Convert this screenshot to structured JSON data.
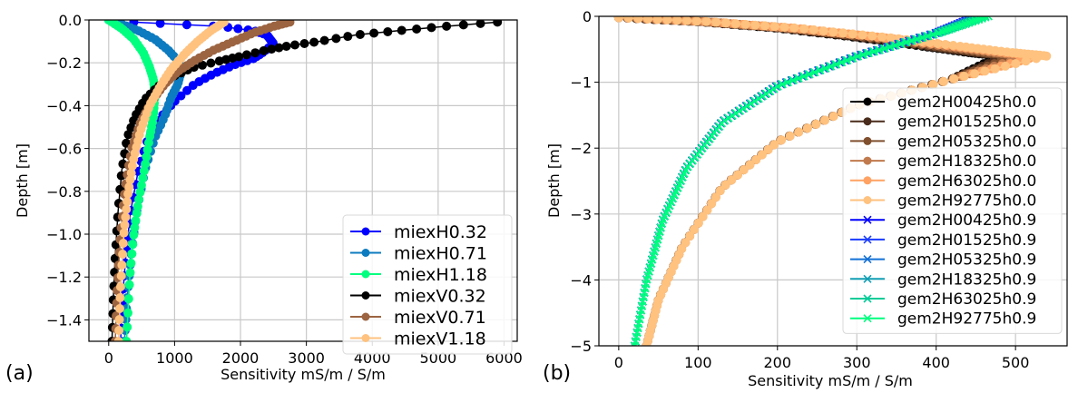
{
  "chart_data": [
    {
      "type": "scatter",
      "panel_label": "(a)",
      "xlabel": "Sensitivity mS/m / S/m",
      "ylabel": "Depth [m]",
      "xlim": [
        -300,
        6200
      ],
      "ylim": [
        -1.5,
        0.0
      ],
      "xticks": [
        0,
        1000,
        2000,
        3000,
        4000,
        5000,
        6000
      ],
      "xtick_labels": [
        "0",
        "1000",
        "2000",
        "3000",
        "4000",
        "5000",
        "6000"
      ],
      "yticks": [
        0.0,
        -0.2,
        -0.4,
        -0.6,
        -0.8,
        -1.0,
        -1.2,
        -1.4
      ],
      "ytick_labels": [
        "0.0",
        "−0.2",
        "−0.4",
        "−0.6",
        "−0.8",
        "−1.0",
        "−1.2",
        "−1.4"
      ],
      "grid": true,
      "legend_position": "lower-right",
      "series": [
        {
          "name": "miexH0.32",
          "color": "#0000ff",
          "marker": "circle",
          "points": [
            [
              380,
              -0.01
            ],
            [
              1700,
              -0.03
            ],
            [
              2200,
              -0.05
            ],
            [
              2400,
              -0.07
            ],
            [
              2450,
              -0.09
            ],
            [
              2500,
              -0.11
            ],
            [
              2350,
              -0.15
            ],
            [
              2200,
              -0.18
            ],
            [
              1900,
              -0.21
            ],
            [
              1600,
              -0.25
            ],
            [
              1300,
              -0.3
            ],
            [
              1000,
              -0.38
            ],
            [
              800,
              -0.45
            ],
            [
              600,
              -0.55
            ],
            [
              450,
              -0.7
            ],
            [
              330,
              -0.9
            ],
            [
              260,
              -1.1
            ],
            [
              210,
              -1.3
            ],
            [
              180,
              -1.5
            ]
          ]
        },
        {
          "name": "miexH0.71",
          "color": "#0c7bbf",
          "marker": "circle",
          "points": [
            [
              0,
              -0.0
            ],
            [
              200,
              -0.02
            ],
            [
              450,
              -0.05
            ],
            [
              700,
              -0.09
            ],
            [
              900,
              -0.14
            ],
            [
              1050,
              -0.19
            ],
            [
              1100,
              -0.24
            ],
            [
              1050,
              -0.3
            ],
            [
              950,
              -0.36
            ],
            [
              850,
              -0.45
            ],
            [
              700,
              -0.55
            ],
            [
              550,
              -0.7
            ],
            [
              420,
              -0.9
            ],
            [
              340,
              -1.1
            ],
            [
              280,
              -1.3
            ],
            [
              240,
              -1.5
            ]
          ]
        },
        {
          "name": "miexH1.18",
          "color": "#00ff7f",
          "marker": "circle",
          "points": [
            [
              0,
              0.0
            ],
            [
              200,
              -0.04
            ],
            [
              380,
              -0.09
            ],
            [
              520,
              -0.15
            ],
            [
              620,
              -0.22
            ],
            [
              680,
              -0.28
            ],
            [
              700,
              -0.35
            ],
            [
              680,
              -0.45
            ],
            [
              620,
              -0.55
            ],
            [
              540,
              -0.7
            ],
            [
              450,
              -0.85
            ],
            [
              380,
              -1.0
            ],
            [
              320,
              -1.2
            ],
            [
              270,
              -1.5
            ]
          ]
        },
        {
          "name": "miexV0.32",
          "color": "#000000",
          "marker": "circle",
          "points": [
            [
              5900,
              -0.01
            ],
            [
              5100,
              -0.03
            ],
            [
              4400,
              -0.05
            ],
            [
              3750,
              -0.07
            ],
            [
              3200,
              -0.1
            ],
            [
              2750,
              -0.12
            ],
            [
              2400,
              -0.14
            ],
            [
              2000,
              -0.17
            ],
            [
              1700,
              -0.19
            ],
            [
              1300,
              -0.22
            ],
            [
              1000,
              -0.26
            ],
            [
              750,
              -0.31
            ],
            [
              550,
              -0.37
            ],
            [
              400,
              -0.45
            ],
            [
              280,
              -0.55
            ],
            [
              200,
              -0.7
            ],
            [
              140,
              -0.9
            ],
            [
              100,
              -1.1
            ],
            [
              70,
              -1.3
            ],
            [
              50,
              -1.5
            ]
          ]
        },
        {
          "name": "miexV0.71",
          "color": "#9c6441",
          "marker": "circle",
          "points": [
            [
              2750,
              -0.01
            ],
            [
              2500,
              -0.03
            ],
            [
              2200,
              -0.06
            ],
            [
              1900,
              -0.1
            ],
            [
              1600,
              -0.14
            ],
            [
              1300,
              -0.19
            ],
            [
              1050,
              -0.24
            ],
            [
              850,
              -0.3
            ],
            [
              650,
              -0.38
            ],
            [
              480,
              -0.48
            ],
            [
              350,
              -0.6
            ],
            [
              250,
              -0.78
            ],
            [
              180,
              -1.0
            ],
            [
              130,
              -1.25
            ],
            [
              100,
              -1.5
            ]
          ]
        },
        {
          "name": "miexV1.18",
          "color": "#ffc27f",
          "marker": "circle",
          "points": [
            [
              1750,
              -0.01
            ],
            [
              1550,
              -0.05
            ],
            [
              1350,
              -0.1
            ],
            [
              1150,
              -0.16
            ],
            [
              950,
              -0.23
            ],
            [
              780,
              -0.31
            ],
            [
              620,
              -0.4
            ],
            [
              480,
              -0.52
            ],
            [
              370,
              -0.66
            ],
            [
              290,
              -0.82
            ],
            [
              230,
              -1.0
            ],
            [
              180,
              -1.25
            ],
            [
              150,
              -1.5
            ]
          ]
        }
      ]
    },
    {
      "type": "scatter",
      "panel_label": "(b)",
      "xlabel": "Sensitivity mS/m / S/m",
      "ylabel": "Depth [m]",
      "xlim": [
        -25,
        565
      ],
      "ylim": [
        -5,
        0
      ],
      "xticks": [
        0,
        100,
        200,
        300,
        400,
        500
      ],
      "xtick_labels": [
        "0",
        "100",
        "200",
        "300",
        "400",
        "500"
      ],
      "yticks": [
        0,
        -1,
        -2,
        -3,
        -4,
        -5
      ],
      "ytick_labels": [
        "0",
        "−1",
        "−2",
        "−3",
        "−4",
        "−5"
      ],
      "grid": true,
      "legend_position": "lower-right",
      "series": [
        {
          "name": "gem2H00425h0.0",
          "color": "#000000",
          "marker": "circle",
          "group": "h0.0",
          "peak_x": 480
        },
        {
          "name": "gem2H01525h0.0",
          "color": "#4a2c1c",
          "marker": "circle",
          "group": "h0.0",
          "peak_x": 488
        },
        {
          "name": "gem2H05325h0.0",
          "color": "#7f4f2e",
          "marker": "circle",
          "group": "h0.0",
          "peak_x": 500
        },
        {
          "name": "gem2H18325h0.0",
          "color": "#c07a4d",
          "marker": "circle",
          "group": "h0.0",
          "peak_x": 515
        },
        {
          "name": "gem2H63025h0.0",
          "color": "#ffa263",
          "marker": "circle",
          "group": "h0.0",
          "peak_x": 530
        },
        {
          "name": "gem2H92775h0.0",
          "color": "#ffc27f",
          "marker": "circle",
          "group": "h0.0",
          "peak_x": 540
        },
        {
          "name": "gem2H00425h0.9",
          "color": "#0000ff",
          "marker": "x",
          "group": "h0.9",
          "top_x": 450
        },
        {
          "name": "gem2H01525h0.9",
          "color": "#1a3cff",
          "marker": "x",
          "group": "h0.9",
          "top_x": 452
        },
        {
          "name": "gem2H05325h0.9",
          "color": "#1370d6",
          "marker": "x",
          "group": "h0.9",
          "top_x": 455
        },
        {
          "name": "gem2H18325h0.9",
          "color": "#129fb4",
          "marker": "x",
          "group": "h0.9",
          "top_x": 458
        },
        {
          "name": "gem2H63025h0.9",
          "color": "#05cc98",
          "marker": "x",
          "group": "h0.9",
          "top_x": 462
        },
        {
          "name": "gem2H92775h0.9",
          "color": "#00ff7f",
          "marker": "x",
          "group": "h0.9",
          "top_x": 466
        }
      ],
      "curve_shape": {
        "h0.0": [
          [
            0,
            -0.02
          ],
          [
            100,
            -0.08
          ],
          [
            200,
            -0.18
          ],
          [
            300,
            -0.32
          ],
          [
            380,
            -0.45
          ],
          [
            440,
            -0.55
          ],
          [
            "peak",
            -0.6
          ],
          [
            420,
            -0.95
          ],
          [
            300,
            -1.35
          ],
          [
            200,
            -1.9
          ],
          [
            130,
            -2.6
          ],
          [
            80,
            -3.5
          ],
          [
            50,
            -4.3
          ],
          [
            35,
            -5.0
          ]
        ],
        "h0.9": [
          [
            "top",
            0.0
          ],
          [
            400,
            -0.25
          ],
          [
            300,
            -0.6
          ],
          [
            200,
            -1.05
          ],
          [
            130,
            -1.6
          ],
          [
            85,
            -2.3
          ],
          [
            55,
            -3.1
          ],
          [
            35,
            -4.0
          ],
          [
            20,
            -5.0
          ]
        ]
      }
    }
  ]
}
